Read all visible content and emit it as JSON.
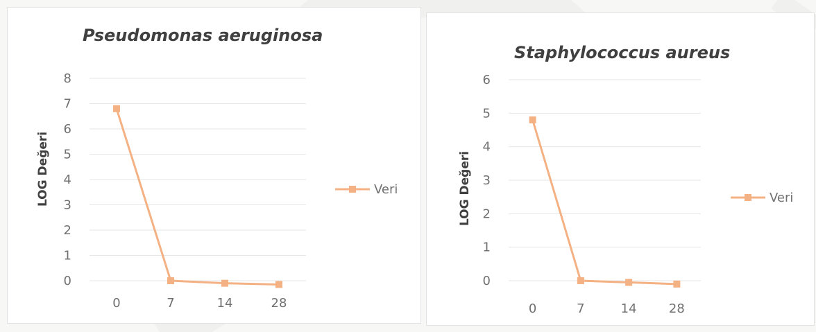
{
  "colors": {
    "series": "#f4b183",
    "grid": "#e6e6e6",
    "text": "#404040",
    "tick": "#707070"
  },
  "chart_data": [
    {
      "type": "line",
      "title": "Pseudomonas aeruginosa",
      "xlabel": "",
      "ylabel": "LOG Değeri",
      "categories": [
        "0",
        "7",
        "14",
        "28"
      ],
      "y_ticks": [
        "0",
        "1",
        "2",
        "3",
        "4",
        "5",
        "6",
        "7",
        "8"
      ],
      "ylim": [
        0,
        8
      ],
      "grid": true,
      "legend": "right",
      "series": [
        {
          "name": "Veri",
          "values": [
            6.8,
            0,
            -0.1,
            -0.15
          ]
        }
      ]
    },
    {
      "type": "line",
      "title": "Staphylococcus aureus",
      "xlabel": "",
      "ylabel": "LOG Değeri",
      "categories": [
        "0",
        "7",
        "14",
        "28"
      ],
      "y_ticks": [
        "0",
        "1",
        "2",
        "3",
        "4",
        "5",
        "6"
      ],
      "ylim": [
        0,
        6
      ],
      "grid": true,
      "legend": "right",
      "series": [
        {
          "name": "Veri",
          "values": [
            4.8,
            0,
            -0.05,
            -0.1
          ]
        }
      ]
    }
  ]
}
